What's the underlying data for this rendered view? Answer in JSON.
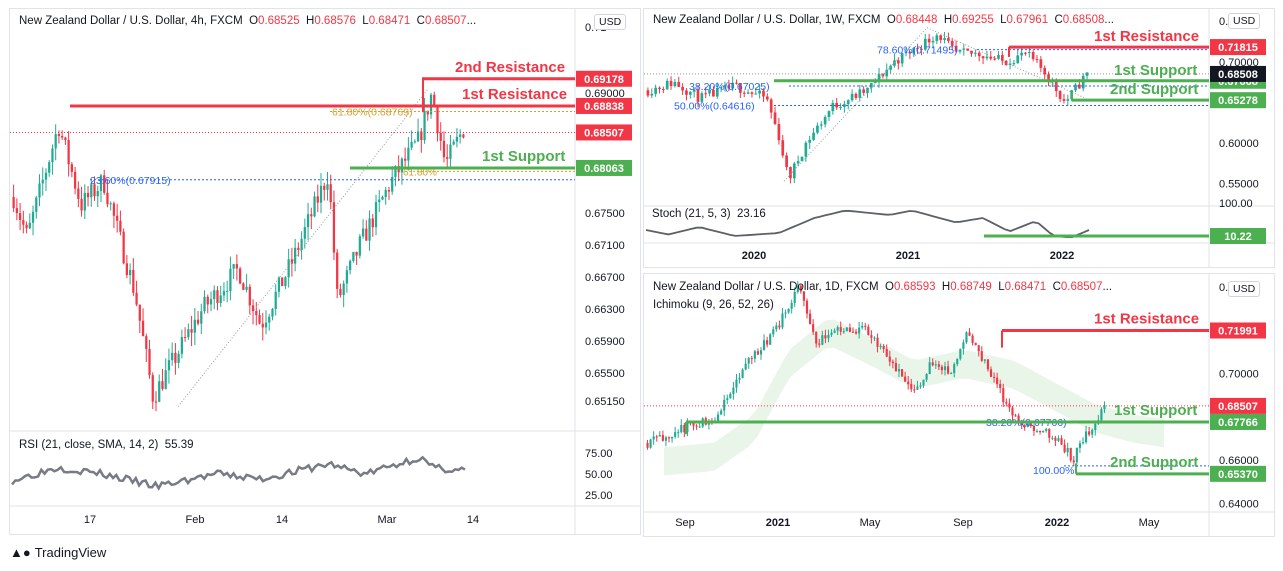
{
  "footer": {
    "brand": "TradingView"
  },
  "colors": {
    "up": "#22ab94",
    "down": "#f23645",
    "resistance": "#f23645",
    "support": "#4caf50",
    "fib": "#2962ff",
    "fib_gold": "#d4a22c"
  },
  "panels": [
    {
      "title": "New Zealand Dollar / U.S. Dollar, 4h, FXCM",
      "o": "0.68525",
      "h": "0.68576",
      "l": "0.68471",
      "c": "0.68507",
      "currency": "USD",
      "indicator": "RSI (21, close, SMA, 14, 2)",
      "indicator_value": "55.39"
    },
    {
      "title": "New Zealand Dollar / U.S. Dollar, 1W, FXCM",
      "o": "0.68448",
      "h": "0.69255",
      "l": "0.67961",
      "c": "0.68508",
      "currency": "USD",
      "indicator": "Stoch (21, 5, 3)",
      "indicator_value": "23.16"
    },
    {
      "title": "New Zealand Dollar / U.S. Dollar, 1D, FXCM",
      "o": "0.68593",
      "h": "0.68749",
      "l": "0.68471",
      "c": "0.68507",
      "currency": "USD",
      "indicator": "Ichimoku (9, 26, 52, 26)",
      "indicator_value": ""
    }
  ],
  "chart_data": [
    {
      "type": "candlestick",
      "title": "New Zealand Dollar / U.S. Dollar, 4h, FXCM",
      "x_ticks": [
        "17",
        "Feb",
        "14",
        "Mar",
        "14"
      ],
      "y_ticks": [
        "0.69000",
        "0.67500",
        "0.67100",
        "0.66700",
        "0.66300",
        "0.65900",
        "0.65500",
        "0.65150"
      ],
      "ylim": [
        0.648,
        0.7005
      ],
      "last_price": "0.68507",
      "levels": [
        {
          "label": "2nd Resistance",
          "value": "0.69178",
          "kind": "resistance"
        },
        {
          "label": "1st Resistance",
          "value": "0.68838",
          "kind": "resistance"
        },
        {
          "label": "1st Support",
          "value": "0.68063",
          "kind": "support"
        }
      ],
      "fib": [
        {
          "label": "61.80%(0.68769)",
          "value": 0.68769
        },
        {
          "label": "23.60%(0.67915)",
          "value": 0.67915
        },
        {
          "label": "61.80%",
          "value": 0.6802
        }
      ],
      "rsi": {
        "y_ticks": [
          "75.00",
          "50.00",
          "25.00"
        ],
        "value": "55.39"
      }
    },
    {
      "type": "candlestick",
      "title": "New Zealand Dollar / U.S. Dollar, 1W, FXCM",
      "x_ticks": [
        "2020",
        "2021",
        "2022"
      ],
      "y_ticks": [
        "0.75000",
        "0.70000",
        "0.65000",
        "0.60000",
        "0.55000"
      ],
      "ylim": [
        0.525,
        0.765
      ],
      "last_price": "0.68508",
      "levels": [
        {
          "label": "1st Resistance",
          "value": "0.71815",
          "kind": "resistance"
        },
        {
          "label": "1st Support",
          "value": "0.67668",
          "kind": "support"
        },
        {
          "label": "2nd Support",
          "value": "0.65278",
          "kind": "support"
        }
      ],
      "fib": [
        {
          "label": "78.60%(0.71495)",
          "value": 0.71495
        },
        {
          "label": "38.20%(0.67025)",
          "value": 0.67025
        },
        {
          "label": "50.00%(0.64616)",
          "value": 0.64616
        }
      ],
      "stoch": {
        "y_ticks": [
          "100.00"
        ],
        "value": "23.16",
        "level": "10.22"
      }
    },
    {
      "type": "candlestick",
      "title": "New Zealand Dollar / U.S. Dollar, 1D, FXCM",
      "x_ticks": [
        "Sep",
        "2021",
        "May",
        "Sep",
        "2022",
        "May"
      ],
      "y_ticks": [
        "0.74000",
        "0.72000",
        "0.70000",
        "0.66000",
        "0.64000"
      ],
      "ylim": [
        0.637,
        0.746
      ],
      "last_price": "0.68507",
      "levels": [
        {
          "label": "1st Resistance",
          "value": "0.71991",
          "kind": "resistance"
        },
        {
          "label": "1st Support",
          "value": "0.67766",
          "kind": "support"
        },
        {
          "label": "2nd Support",
          "value": "0.65370",
          "kind": "support"
        }
      ],
      "fib": [
        {
          "label": "38.20%(0.67766)",
          "value": 0.67766
        },
        {
          "label": "100.00%",
          "value": 0.6537
        }
      ]
    }
  ]
}
